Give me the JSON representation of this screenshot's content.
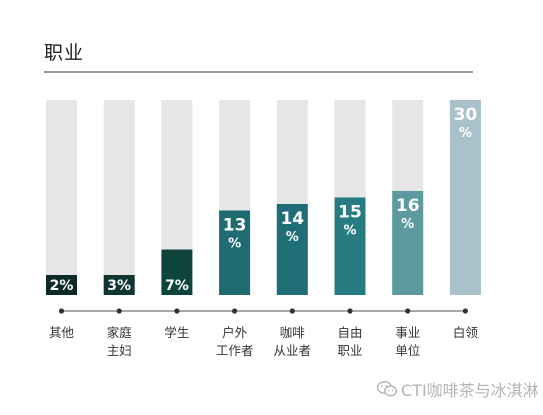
{
  "title": "职业",
  "watermark": "CTI咖啡茶与冰淇淋",
  "watermark_icon": "wechat-icon",
  "chart_data": {
    "type": "bar",
    "title": "职业",
    "categories": [
      [
        "其他"
      ],
      [
        "家庭",
        "主妇"
      ],
      [
        "学生"
      ],
      [
        "户外",
        "工作者"
      ],
      [
        "咖啡",
        "从业者"
      ],
      [
        "自由",
        "职业"
      ],
      [
        "事业",
        "单位"
      ],
      [
        "白领"
      ]
    ],
    "values": [
      2,
      3,
      7,
      13,
      14,
      15,
      16,
      30
    ],
    "value_labels": [
      "2%",
      "3%",
      "7%",
      "13%",
      "14%",
      "15%",
      "16%",
      "30%"
    ],
    "ylim": [
      0,
      30
    ],
    "colors": [
      "#0e2a26",
      "#0f3630",
      "#0d453c",
      "#1e6c72",
      "#1f6d76",
      "#267c80",
      "#5d9aa0",
      "#a9c1cb"
    ],
    "track_color": "#e6e6e6",
    "axis_color": "#555555",
    "grid": false,
    "legend": "none"
  }
}
